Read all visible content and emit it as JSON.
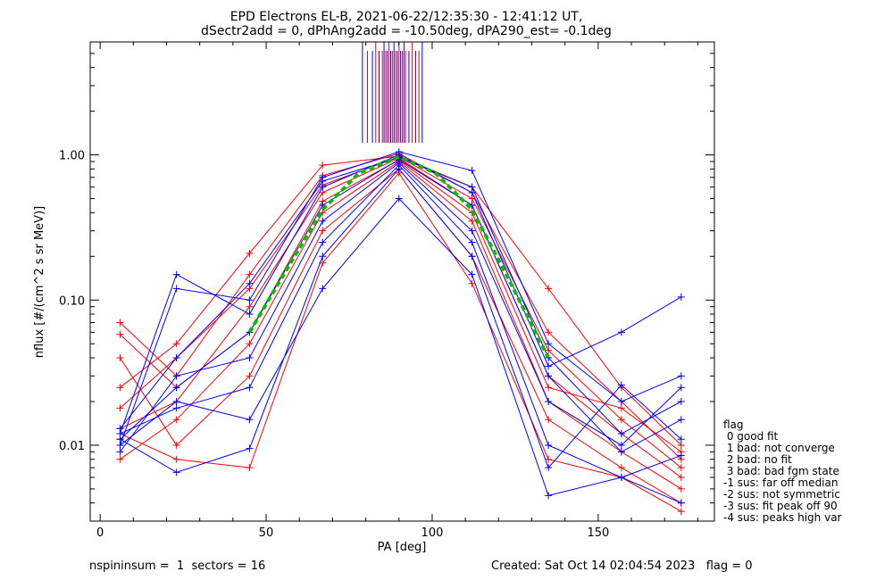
{
  "title_line1": "EPD Electrons EL-B, 2021-06-22/12:35:30 - 12:41:12 UT,",
  "title_line2": "dSectr2add = 0, dPhAng2add = -10.50deg, dPA290_est=  -0.1deg",
  "footer": {
    "left": "nspininsum =  1  sectors = 16",
    "right": "Created: Sat Oct 14 02:04:54 2023   flag = 0"
  },
  "legend": {
    "title": "flag",
    "items": [
      " 0 good fit",
      " 1 bad: not converge",
      " 2 bad: no fit",
      " 3 bad: bad fgm state",
      "-1 sus: far off median",
      "-2 sus: not symmetric",
      "-3 sus: fit peak off 90",
      "-4 sus: peaks high var"
    ]
  },
  "colors": {
    "red": "#ff0000",
    "blue": "#0000ff",
    "median": "#00c000",
    "axes": "#000000"
  },
  "chart_data": {
    "type": "line",
    "xlabel": "PA [deg]",
    "ylabel": "nflux [#/(cm^2 s sr MeV)]",
    "xlim": [
      -3,
      185
    ],
    "ylim": [
      0.003,
      6.0
    ],
    "yscale": "log",
    "xticks": [
      0,
      50,
      100,
      150
    ],
    "xtick_labels": [
      "0",
      "50",
      "100",
      "150"
    ],
    "yticks": [
      0.01,
      0.1,
      1.0
    ],
    "ytick_labels": [
      "0.01",
      "0.10",
      "1.00"
    ],
    "pitch_angles": [
      6,
      23,
      45,
      67,
      90,
      112,
      135,
      157,
      175
    ],
    "median_fit": {
      "name": "median",
      "x": [
        45,
        56,
        67,
        78,
        90,
        101,
        112,
        123,
        135
      ],
      "y": [
        0.06,
        0.16,
        0.42,
        0.75,
        0.97,
        0.75,
        0.42,
        0.14,
        0.04
      ]
    },
    "series": [
      {
        "color": "red",
        "x": [
          6,
          23,
          45,
          67,
          90,
          112,
          135,
          157,
          175
        ],
        "y": [
          0.013,
          0.02,
          0.09,
          0.55,
          0.95,
          0.45,
          0.03,
          0.012,
          0.006
        ]
      },
      {
        "color": "red",
        "x": [
          6,
          23,
          45,
          67,
          90,
          112,
          135,
          157,
          175
        ],
        "y": [
          0.07,
          0.03,
          0.15,
          0.72,
          1.02,
          0.55,
          0.06,
          0.02,
          0.008
        ]
      },
      {
        "color": "red",
        "x": [
          6,
          23,
          45,
          67,
          90,
          112,
          135,
          157,
          175
        ],
        "y": [
          0.04,
          0.01,
          0.03,
          0.3,
          0.8,
          0.2,
          0.015,
          0.007,
          0.004
        ]
      },
      {
        "color": "red",
        "x": [
          6,
          23,
          45,
          67,
          90,
          112,
          135,
          157,
          175
        ],
        "y": [
          0.025,
          0.05,
          0.21,
          0.85,
          0.98,
          0.6,
          0.12,
          0.025,
          0.01
        ]
      },
      {
        "color": "red",
        "x": [
          6,
          23,
          45,
          67,
          90,
          112,
          135,
          157,
          175
        ],
        "y": [
          0.008,
          0.015,
          0.05,
          0.4,
          0.9,
          0.35,
          0.02,
          0.009,
          0.005
        ]
      },
      {
        "color": "red",
        "x": [
          6,
          23,
          45,
          67,
          90,
          112,
          135,
          157,
          175
        ],
        "y": [
          0.018,
          0.04,
          0.12,
          0.62,
          0.97,
          0.5,
          0.045,
          0.015,
          0.007
        ]
      },
      {
        "color": "red",
        "x": [
          6,
          23,
          45,
          67,
          90,
          112,
          135,
          157,
          175
        ],
        "y": [
          0.012,
          0.008,
          0.007,
          0.18,
          0.75,
          0.13,
          0.008,
          0.006,
          0.0035
        ]
      },
      {
        "color": "red",
        "x": [
          6,
          23,
          45,
          67,
          90,
          112,
          135,
          157,
          175
        ],
        "y": [
          0.058,
          0.025,
          0.06,
          0.48,
          0.92,
          0.4,
          0.025,
          0.018,
          0.009
        ]
      },
      {
        "color": "blue",
        "x": [
          6,
          23,
          45,
          67,
          90,
          112,
          135,
          157,
          175
        ],
        "y": [
          0.012,
          0.15,
          0.08,
          0.6,
          1.0,
          0.55,
          0.035,
          0.06,
          0.105
        ]
      },
      {
        "color": "blue",
        "x": [
          6,
          23,
          45,
          67,
          90,
          112,
          135,
          157,
          175
        ],
        "y": [
          0.01,
          0.12,
          0.1,
          0.7,
          1.05,
          0.78,
          0.05,
          0.02,
          0.03
        ]
      },
      {
        "color": "blue",
        "x": [
          6,
          23,
          45,
          67,
          90,
          112,
          135,
          157,
          175
        ],
        "y": [
          0.009,
          0.03,
          0.04,
          0.35,
          0.88,
          0.3,
          0.02,
          0.01,
          0.025
        ]
      },
      {
        "color": "blue",
        "x": [
          6,
          23,
          45,
          67,
          90,
          112,
          135,
          157,
          175
        ],
        "y": [
          0.01,
          0.02,
          0.015,
          0.12,
          0.5,
          0.15,
          0.0045,
          0.006,
          0.004
        ]
      },
      {
        "color": "blue",
        "x": [
          6,
          23,
          45,
          67,
          90,
          112,
          135,
          157,
          175
        ],
        "y": [
          0.011,
          0.025,
          0.06,
          0.45,
          0.93,
          0.45,
          0.03,
          0.009,
          0.015
        ]
      },
      {
        "color": "blue",
        "x": [
          6,
          23,
          45,
          67,
          90,
          112,
          135,
          157,
          175
        ],
        "y": [
          0.012,
          0.018,
          0.025,
          0.25,
          0.85,
          0.25,
          0.01,
          0.006,
          0.0085
        ]
      },
      {
        "color": "blue",
        "x": [
          6,
          23,
          45,
          67,
          90,
          112,
          135,
          157,
          175
        ],
        "y": [
          0.013,
          0.04,
          0.13,
          0.66,
          0.96,
          0.6,
          0.04,
          0.012,
          0.02
        ]
      },
      {
        "color": "blue",
        "x": [
          6,
          23,
          45,
          67,
          90,
          112,
          135,
          157,
          175
        ],
        "y": [
          0.011,
          0.0065,
          0.0095,
          0.2,
          0.8,
          0.2,
          0.007,
          0.026,
          0.011
        ]
      }
    ]
  }
}
